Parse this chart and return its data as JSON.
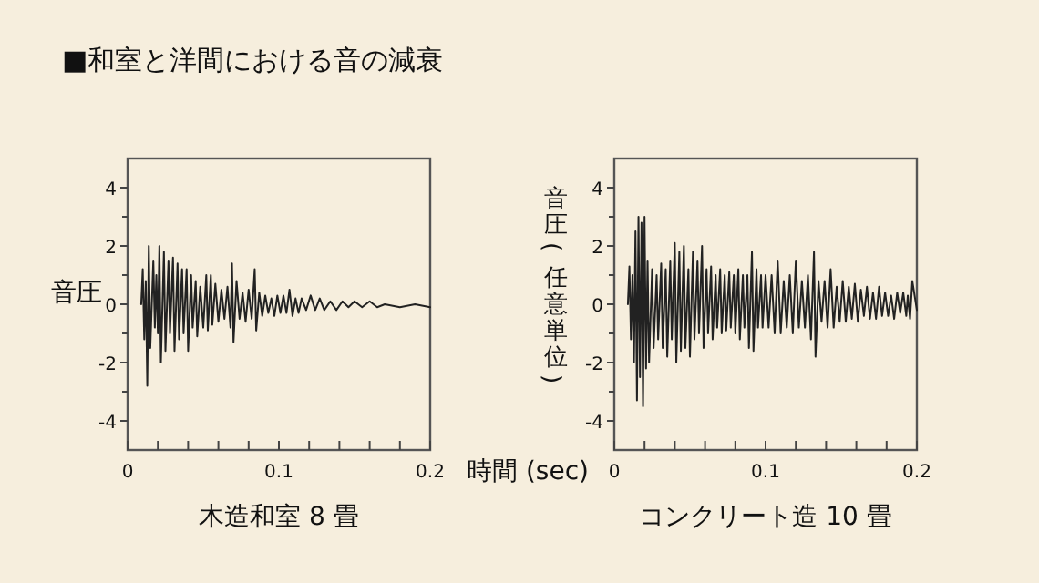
{
  "chart_data": [
    {
      "type": "line",
      "title": "■和室と洋間における音の減衰",
      "xlabel": "木造和室 8 畳",
      "ylabel": "音圧",
      "color": "#222222",
      "x": [
        0.009,
        0.01,
        0.011,
        0.012,
        0.013,
        0.014,
        0.015,
        0.017,
        0.018,
        0.019,
        0.02,
        0.021,
        0.022,
        0.024,
        0.025,
        0.027,
        0.028,
        0.03,
        0.031,
        0.033,
        0.034,
        0.036,
        0.037,
        0.039,
        0.04,
        0.042,
        0.043,
        0.045,
        0.046,
        0.048,
        0.05,
        0.052,
        0.053,
        0.055,
        0.056,
        0.058,
        0.06,
        0.062,
        0.064,
        0.066,
        0.068,
        0.069,
        0.07,
        0.072,
        0.074,
        0.076,
        0.078,
        0.08,
        0.082,
        0.084,
        0.085,
        0.087,
        0.089,
        0.091,
        0.093,
        0.095,
        0.097,
        0.099,
        0.101,
        0.103,
        0.105,
        0.107,
        0.109,
        0.111,
        0.113,
        0.115,
        0.118,
        0.121,
        0.124,
        0.127,
        0.13,
        0.134,
        0.138,
        0.142,
        0.146,
        0.15,
        0.155,
        0.16,
        0.165,
        0.17,
        0.18,
        0.19,
        0.2
      ],
      "values": [
        0,
        1.2,
        -1.2,
        0.8,
        -2.8,
        2.0,
        -1.5,
        1.5,
        -0.8,
        1.0,
        -1.0,
        2.0,
        -2.0,
        1.8,
        -1.6,
        1.5,
        -1.0,
        1.6,
        -1.6,
        1.4,
        -1.2,
        1.2,
        -1.0,
        1.2,
        -1.6,
        1.0,
        -0.8,
        0.8,
        -1.1,
        0.6,
        -0.8,
        1.0,
        -0.9,
        1.0,
        -0.7,
        0.7,
        -0.6,
        0.5,
        -0.5,
        0.6,
        -0.8,
        1.4,
        -1.3,
        0.8,
        -0.5,
        0.4,
        -0.6,
        0.5,
        -0.5,
        1.2,
        -0.9,
        0.4,
        -0.4,
        0.3,
        -0.3,
        0.2,
        -0.4,
        0.3,
        -0.3,
        0.3,
        -0.3,
        0.5,
        -0.4,
        0.2,
        -0.3,
        0.2,
        -0.2,
        0.3,
        -0.2,
        0.2,
        -0.2,
        0.1,
        -0.2,
        0.1,
        -0.1,
        0.1,
        -0.1,
        0.1,
        -0.1,
        0,
        -0.1,
        0,
        -0.1
      ],
      "xlim": [
        0,
        0.2
      ],
      "xticks": [
        0,
        {
          "value": 0.02,
          "label": null
        },
        {
          "value": 0.04,
          "label": null
        },
        {
          "value": 0.06,
          "label": null
        },
        {
          "value": 0.08,
          "label": null
        },
        0.1,
        {
          "value": 0.12,
          "label": null
        },
        {
          "value": 0.14,
          "label": null
        },
        {
          "value": 0.16,
          "label": null
        },
        {
          "value": 0.18,
          "label": null
        },
        0.2
      ],
      "ylim": [
        -5,
        5
      ],
      "yticks": [
        -4,
        {
          "value": -3,
          "label": null
        },
        -2,
        {
          "value": -1,
          "label": null
        },
        0,
        {
          "value": 1,
          "label": null
        },
        2,
        {
          "value": 3,
          "label": null
        },
        4
      ]
    },
    {
      "type": "line",
      "xlabel": "コンクリート造 10 畳",
      "ylabel": "音圧(任意単位)",
      "annotations": [
        "時間 (sec)"
      ],
      "color": "#222222",
      "x": [
        0.009,
        0.01,
        0.011,
        0.012,
        0.013,
        0.014,
        0.015,
        0.016,
        0.017,
        0.018,
        0.019,
        0.02,
        0.021,
        0.022,
        0.023,
        0.025,
        0.026,
        0.028,
        0.029,
        0.031,
        0.032,
        0.034,
        0.035,
        0.037,
        0.038,
        0.04,
        0.041,
        0.043,
        0.044,
        0.046,
        0.047,
        0.049,
        0.05,
        0.052,
        0.053,
        0.055,
        0.056,
        0.058,
        0.059,
        0.061,
        0.062,
        0.064,
        0.065,
        0.067,
        0.068,
        0.07,
        0.071,
        0.073,
        0.074,
        0.076,
        0.077,
        0.079,
        0.08,
        0.082,
        0.083,
        0.085,
        0.086,
        0.088,
        0.089,
        0.091,
        0.092,
        0.094,
        0.095,
        0.097,
        0.098,
        0.1,
        0.102,
        0.104,
        0.106,
        0.108,
        0.11,
        0.112,
        0.114,
        0.116,
        0.118,
        0.12,
        0.122,
        0.124,
        0.126,
        0.128,
        0.13,
        0.132,
        0.133,
        0.135,
        0.137,
        0.139,
        0.141,
        0.143,
        0.145,
        0.147,
        0.149,
        0.151,
        0.153,
        0.155,
        0.157,
        0.159,
        0.161,
        0.163,
        0.165,
        0.167,
        0.169,
        0.171,
        0.173,
        0.175,
        0.177,
        0.179,
        0.181,
        0.183,
        0.185,
        0.187,
        0.189,
        0.191,
        0.193,
        0.194,
        0.1955,
        0.197,
        0.2
      ],
      "values": [
        0,
        1.3,
        -1.2,
        1.0,
        -2.0,
        2.5,
        -3.3,
        3.0,
        -2.5,
        2.8,
        -3.5,
        3.0,
        -2.2,
        1.5,
        -2.0,
        1.2,
        -1.5,
        1.0,
        -1.2,
        1.4,
        -1.5,
        1.2,
        -1.8,
        1.5,
        -1.2,
        2.1,
        -2.0,
        1.8,
        -1.6,
        2.0,
        -1.5,
        1.2,
        -1.8,
        1.8,
        -1.2,
        1.5,
        -1.0,
        2.0,
        -1.5,
        1.2,
        -1.0,
        1.3,
        -1.2,
        1.0,
        -0.8,
        1.2,
        -1.0,
        1.0,
        -0.9,
        1.1,
        -0.8,
        1.0,
        -1.0,
        1.2,
        -1.2,
        1.0,
        -0.8,
        1.0,
        -1.5,
        1.8,
        -1.6,
        1.2,
        -0.8,
        1.0,
        -0.8,
        1.0,
        -0.8,
        1.0,
        -1.0,
        1.5,
        -1.0,
        0.8,
        -0.8,
        1.0,
        -1.0,
        1.5,
        -0.8,
        0.8,
        -0.8,
        1.0,
        -1.2,
        1.8,
        -1.8,
        0.8,
        -0.6,
        0.8,
        -0.8,
        1.2,
        -0.8,
        0.6,
        -0.6,
        0.8,
        -0.6,
        0.6,
        -0.5,
        0.7,
        -0.6,
        0.5,
        -0.4,
        0.6,
        -0.5,
        0.4,
        -0.5,
        0.6,
        -0.4,
        0.4,
        -0.4,
        0.3,
        -0.5,
        0.4,
        -0.3,
        0.4,
        -0.4,
        0.3,
        -0.5,
        0.8,
        -0.2
      ],
      "xlim": [
        0,
        0.2
      ],
      "xticks": [
        0,
        {
          "value": 0.02,
          "label": null
        },
        {
          "value": 0.04,
          "label": null
        },
        {
          "value": 0.06,
          "label": null
        },
        {
          "value": 0.08,
          "label": null
        },
        0.1,
        {
          "value": 0.12,
          "label": null
        },
        {
          "value": 0.14,
          "label": null
        },
        {
          "value": 0.16,
          "label": null
        },
        {
          "value": 0.18,
          "label": null
        },
        0.2
      ],
      "ylim": [
        -5,
        5
      ],
      "yticks": [
        -4,
        {
          "value": -3,
          "label": null
        },
        -2,
        {
          "value": -1,
          "label": null
        },
        0,
        {
          "value": 1,
          "label": null
        },
        2,
        {
          "value": 3,
          "label": null
        },
        4
      ]
    }
  ]
}
